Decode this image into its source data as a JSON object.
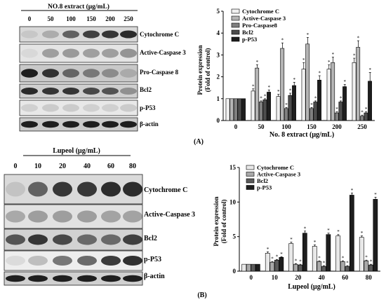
{
  "panel_a": {
    "label": "(A)",
    "blot": {
      "title": "NO.8 extract (μg/mL)",
      "lanes": [
        "0",
        "50",
        "100",
        "150",
        "200",
        "250"
      ],
      "bands": [
        "Cytochrome C",
        "Active-Caspase 3",
        "Pro-Caspase 8",
        "Bcl2",
        "p-P53",
        "β-actin"
      ]
    }
  },
  "panel_b": {
    "label": "(B)",
    "blot": {
      "title": "Lupeol (μg/mL)",
      "lanes": [
        "0",
        "10",
        "20",
        "40",
        "60",
        "80"
      ],
      "bands": [
        "Cytochrome C",
        "Active-Caspase 3",
        "Bcl2",
        "p-P53",
        "β-actin"
      ]
    }
  },
  "chart_data": [
    {
      "type": "bar",
      "categories": [
        "0",
        "50",
        "100",
        "150",
        "200",
        "250"
      ],
      "xlabel": "No. 8 extract (μg/mL)",
      "ylabel": "Protein expression (Fold of control)",
      "ylim": [
        0,
        5
      ],
      "yticks": [
        "0",
        "1",
        "2",
        "3",
        "4",
        "5"
      ],
      "legend": "top-left",
      "series": [
        {
          "name": "Cytochrome C",
          "values": [
            1.0,
            1.35,
            1.1,
            2.35,
            2.35,
            2.65
          ],
          "errors": [
            0,
            0.1,
            0.1,
            0.3,
            0.2,
            0.2
          ],
          "color": "#f0f0f0"
        },
        {
          "name": "Active-Caspase 3",
          "values": [
            1.0,
            2.4,
            3.3,
            3.5,
            2.65,
            3.35
          ],
          "errors": [
            0,
            0.15,
            0.25,
            0.3,
            0.25,
            0.3
          ],
          "color": "#b4b4b4"
        },
        {
          "name": "Pro-Caspase8",
          "values": [
            1.0,
            0.85,
            0.55,
            0.55,
            0.35,
            0.2
          ],
          "errors": [
            0,
            0.05,
            0.05,
            0.05,
            0.05,
            0.05
          ],
          "color": "#808080"
        },
        {
          "name": "Bcl2",
          "values": [
            1.0,
            0.95,
            1.15,
            0.85,
            0.85,
            0.35
          ],
          "errors": [
            0,
            0.05,
            0.1,
            0.05,
            0.05,
            0.05
          ],
          "color": "#4c4c4c"
        },
        {
          "name": "p-P53",
          "values": [
            1.0,
            1.3,
            1.6,
            1.85,
            1.55,
            1.8
          ],
          "errors": [
            0,
            0.1,
            0.15,
            0.2,
            0.1,
            0.4
          ],
          "color": "#1e1e1e"
        }
      ]
    },
    {
      "type": "bar",
      "categories": [
        "0",
        "10",
        "20",
        "40",
        "60",
        "80"
      ],
      "xlabel": "Lupeol (μg/mL)",
      "ylabel": "Protein expression (Fold of control)",
      "ylim": [
        0,
        15
      ],
      "yticks": [
        "0",
        "5",
        "10",
        "15"
      ],
      "legend": "top-left",
      "series": [
        {
          "name": "Cytochrome C",
          "values": [
            1.0,
            2.6,
            4.0,
            3.6,
            5.1,
            4.9
          ],
          "errors": [
            0,
            0.2,
            0.2,
            0.2,
            0.2,
            0.2
          ],
          "color": "#e8e8e8"
        },
        {
          "name": "Active-Caspase 3",
          "values": [
            1.0,
            1.3,
            1.0,
            1.4,
            1.4,
            1.5
          ],
          "errors": [
            0,
            0.1,
            0.1,
            0.1,
            0.1,
            0.1
          ],
          "color": "#a8a8a8"
        },
        {
          "name": "Bcl2",
          "values": [
            1.0,
            1.6,
            0.9,
            0.7,
            0.7,
            0.9
          ],
          "errors": [
            0,
            0.1,
            0.1,
            0.1,
            0.1,
            0.1
          ],
          "color": "#5a5a5a"
        },
        {
          "name": "p-P53",
          "values": [
            1.0,
            2.0,
            5.5,
            5.3,
            11.0,
            10.4
          ],
          "errors": [
            0,
            0.1,
            0.3,
            0.2,
            0.3,
            0.3
          ],
          "color": "#1e1e1e"
        }
      ]
    }
  ]
}
